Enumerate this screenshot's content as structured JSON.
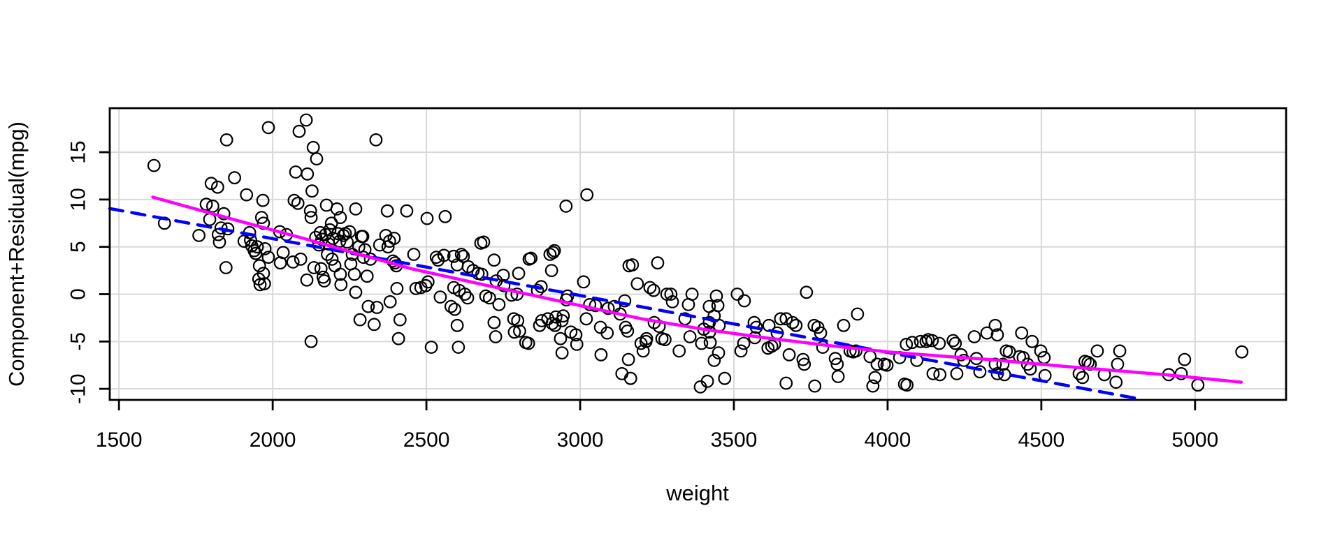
{
  "chart_data": {
    "type": "scatter",
    "title": "",
    "xlabel": "weight",
    "ylabel": "Component+Residual(mpg)",
    "xlim": [
      1470,
      5296
    ],
    "ylim": [
      -11.17,
      19.65
    ],
    "x_ticks": [
      1500,
      2000,
      2500,
      3000,
      3500,
      4000,
      4500,
      5000
    ],
    "y_ticks": [
      -10,
      -5,
      0,
      5,
      10,
      15
    ],
    "grid": true,
    "marker": "open-circle",
    "colors": {
      "points": "#000000",
      "linear_fit": "#0000ff",
      "smooth_fit": "#ff00ff",
      "grid": "#d8d8d8",
      "axis": "#000000",
      "background": "#ffffff"
    },
    "points": [
      [
        1614,
        13.6
      ],
      [
        1648,
        7.5
      ],
      [
        1760,
        6.2
      ],
      [
        1784,
        9.5
      ],
      [
        1795,
        7.9
      ],
      [
        1800,
        11.7
      ],
      [
        1805,
        9.3
      ],
      [
        1821,
        11.3
      ],
      [
        1823,
        6.3
      ],
      [
        1827,
        5.5
      ],
      [
        1832,
        7.0
      ],
      [
        1841,
        8.5
      ],
      [
        1848,
        2.8
      ],
      [
        1850,
        16.3
      ],
      [
        1854,
        6.9
      ],
      [
        1876,
        12.3
      ],
      [
        1907,
        5.6
      ],
      [
        1915,
        10.5
      ],
      [
        1925,
        6.5
      ],
      [
        1928,
        5.7
      ],
      [
        1932,
        5.1
      ],
      [
        1940,
        4.6
      ],
      [
        1945,
        4.3
      ],
      [
        1950,
        5.0
      ],
      [
        1955,
        1.6
      ],
      [
        1957,
        3.0
      ],
      [
        1959,
        1.0
      ],
      [
        1964,
        8.1
      ],
      [
        1968,
        9.9
      ],
      [
        1970,
        7.5
      ],
      [
        1970,
        2.2
      ],
      [
        1973,
        1.1
      ],
      [
        1975,
        4.8
      ],
      [
        1986,
        17.6
      ],
      [
        1986,
        3.9
      ],
      [
        2023,
        6.6
      ],
      [
        2025,
        3.3
      ],
      [
        2034,
        4.4
      ],
      [
        2045,
        6.3
      ],
      [
        2066,
        3.4
      ],
      [
        2070,
        9.9
      ],
      [
        2075,
        12.9
      ],
      [
        2082,
        9.6
      ],
      [
        2086,
        17.2
      ],
      [
        2091,
        3.7
      ],
      [
        2109,
        18.4
      ],
      [
        2111,
        1.5
      ],
      [
        2113,
        12.7
      ],
      [
        2123,
        8.8
      ],
      [
        2125,
        8.1
      ],
      [
        2125,
        -5.0
      ],
      [
        2128,
        10.9
      ],
      [
        2132,
        15.5
      ],
      [
        2134,
        2.8
      ],
      [
        2140,
        6.0
      ],
      [
        2143,
        14.3
      ],
      [
        2150,
        5.2
      ],
      [
        2155,
        6.5
      ],
      [
        2157,
        2.7
      ],
      [
        2160,
        5.8
      ],
      [
        2164,
        1.8
      ],
      [
        2168,
        1.4
      ],
      [
        2172,
        6.3
      ],
      [
        2175,
        9.4
      ],
      [
        2178,
        4.2
      ],
      [
        2182,
        5.3
      ],
      [
        2186,
        6.8
      ],
      [
        2191,
        7.5
      ],
      [
        2193,
        3.7
      ],
      [
        2196,
        5.9
      ],
      [
        2202,
        3.0
      ],
      [
        2209,
        9.0
      ],
      [
        2212,
        6.4
      ],
      [
        2218,
        5.6
      ],
      [
        2220,
        8.1
      ],
      [
        2220,
        2.1
      ],
      [
        2222,
        1.0
      ],
      [
        2230,
        6.2
      ],
      [
        2236,
        6.4
      ],
      [
        2242,
        5.5
      ],
      [
        2250,
        6.6
      ],
      [
        2254,
        3.2
      ],
      [
        2259,
        4.2
      ],
      [
        2266,
        2.1
      ],
      [
        2270,
        9.0
      ],
      [
        2270,
        0.2
      ],
      [
        2280,
        5.0
      ],
      [
        2284,
        -2.7
      ],
      [
        2289,
        6.1
      ],
      [
        2293,
        6.1
      ],
      [
        2295,
        3.9
      ],
      [
        2300,
        4.7
      ],
      [
        2307,
        1.9
      ],
      [
        2311,
        -1.3
      ],
      [
        2318,
        3.7
      ],
      [
        2330,
        -3.2
      ],
      [
        2336,
        16.3
      ],
      [
        2339,
        -1.4
      ],
      [
        2348,
        5.2
      ],
      [
        2368,
        6.2
      ],
      [
        2373,
        8.8
      ],
      [
        2375,
        5.0
      ],
      [
        2380,
        5.6
      ],
      [
        2382,
        -0.8
      ],
      [
        2391,
        3.5
      ],
      [
        2395,
        5.9
      ],
      [
        2398,
        3.3
      ],
      [
        2402,
        3.0
      ],
      [
        2404,
        0.6
      ],
      [
        2409,
        -4.7
      ],
      [
        2414,
        -2.7
      ],
      [
        2436,
        8.8
      ],
      [
        2459,
        4.2
      ],
      [
        2466,
        0.6
      ],
      [
        2482,
        0.7
      ],
      [
        2498,
        0.9
      ],
      [
        2502,
        8.0
      ],
      [
        2505,
        1.3
      ],
      [
        2516,
        -5.6
      ],
      [
        2532,
        3.9
      ],
      [
        2538,
        3.6
      ],
      [
        2545,
        -0.3
      ],
      [
        2557,
        4.1
      ],
      [
        2561,
        8.2
      ],
      [
        2580,
        -1.3
      ],
      [
        2589,
        4.0
      ],
      [
        2589,
        0.7
      ],
      [
        2592,
        -1.6
      ],
      [
        2600,
        3.1
      ],
      [
        2600,
        -3.3
      ],
      [
        2604,
        -5.6
      ],
      [
        2607,
        0.4
      ],
      [
        2614,
        4.2
      ],
      [
        2620,
        4.0
      ],
      [
        2625,
        0.0
      ],
      [
        2634,
        -0.4
      ],
      [
        2636,
        2.9
      ],
      [
        2652,
        2.5
      ],
      [
        2668,
        2.2
      ],
      [
        2677,
        5.4
      ],
      [
        2680,
        2.1
      ],
      [
        2686,
        5.5
      ],
      [
        2693,
        -0.2
      ],
      [
        2705,
        -0.4
      ],
      [
        2720,
        3.6
      ],
      [
        2720,
        -3.0
      ],
      [
        2725,
        -4.5
      ],
      [
        2727,
        1.4
      ],
      [
        2736,
        -1.1
      ],
      [
        2750,
        2.0
      ],
      [
        2752,
        0.9
      ],
      [
        2777,
        -0.1
      ],
      [
        2784,
        -2.6
      ],
      [
        2786,
        -4.0
      ],
      [
        2795,
        0.0
      ],
      [
        2797,
        -2.8
      ],
      [
        2800,
        2.2
      ],
      [
        2803,
        -3.9
      ],
      [
        2823,
        -5.1
      ],
      [
        2832,
        -5.2
      ],
      [
        2834,
        3.7
      ],
      [
        2840,
        3.8
      ],
      [
        2861,
        0.4
      ],
      [
        2868,
        -3.3
      ],
      [
        2873,
        0.8
      ],
      [
        2875,
        -2.8
      ],
      [
        2895,
        -2.6
      ],
      [
        2902,
        4.2
      ],
      [
        2907,
        2.5
      ],
      [
        2909,
        -3.1
      ],
      [
        2912,
        4.4
      ],
      [
        2916,
        4.6
      ],
      [
        2918,
        -3.3
      ],
      [
        2921,
        -2.4
      ],
      [
        2936,
        -4.7
      ],
      [
        2941,
        -2.8
      ],
      [
        2941,
        -6.2
      ],
      [
        2945,
        -2.3
      ],
      [
        2954,
        9.3
      ],
      [
        2955,
        -0.6
      ],
      [
        2959,
        -0.2
      ],
      [
        2970,
        -4.0
      ],
      [
        2986,
        -4.3
      ],
      [
        2989,
        -5.3
      ],
      [
        3011,
        1.3
      ],
      [
        3020,
        -2.6
      ],
      [
        3022,
        10.5
      ],
      [
        3031,
        -1.1
      ],
      [
        3050,
        -1.2
      ],
      [
        3066,
        -3.5
      ],
      [
        3068,
        -6.4
      ],
      [
        3088,
        -4.1
      ],
      [
        3091,
        -1.5
      ],
      [
        3111,
        -1.3
      ],
      [
        3130,
        -2.1
      ],
      [
        3136,
        -8.4
      ],
      [
        3145,
        -0.7
      ],
      [
        3148,
        -3.5
      ],
      [
        3154,
        -3.9
      ],
      [
        3157,
        -6.9
      ],
      [
        3159,
        3.0
      ],
      [
        3164,
        -8.9
      ],
      [
        3170,
        3.1
      ],
      [
        3186,
        1.1
      ],
      [
        3198,
        -5.2
      ],
      [
        3205,
        -6.0
      ],
      [
        3214,
        -5.0
      ],
      [
        3216,
        -4.7
      ],
      [
        3227,
        0.7
      ],
      [
        3239,
        0.4
      ],
      [
        3241,
        -3.0
      ],
      [
        3252,
        3.3
      ],
      [
        3257,
        -3.4
      ],
      [
        3266,
        -4.7
      ],
      [
        3276,
        -4.8
      ],
      [
        3282,
        0.0
      ],
      [
        3295,
        0.0
      ],
      [
        3300,
        -0.8
      ],
      [
        3322,
        -6.0
      ],
      [
        3341,
        -2.6
      ],
      [
        3352,
        -1.1
      ],
      [
        3357,
        -4.5
      ],
      [
        3364,
        0.0
      ],
      [
        3391,
        -9.8
      ],
      [
        3395,
        -5.2
      ],
      [
        3402,
        -3.7
      ],
      [
        3414,
        -9.2
      ],
      [
        3420,
        -1.3
      ],
      [
        3420,
        -3.0
      ],
      [
        3421,
        -4.0
      ],
      [
        3423,
        -5.1
      ],
      [
        3436,
        -2.3
      ],
      [
        3436,
        -7.0
      ],
      [
        3443,
        -0.2
      ],
      [
        3448,
        -1.2
      ],
      [
        3450,
        -6.2
      ],
      [
        3452,
        -3.3
      ],
      [
        3470,
        -8.9
      ],
      [
        3511,
        0.0
      ],
      [
        3523,
        -6.0
      ],
      [
        3532,
        -5.2
      ],
      [
        3534,
        -0.7
      ],
      [
        3566,
        -3.0
      ],
      [
        3568,
        -4.6
      ],
      [
        3573,
        -3.5
      ],
      [
        3611,
        -5.7
      ],
      [
        3614,
        -3.3
      ],
      [
        3623,
        -5.5
      ],
      [
        3632,
        -5.3
      ],
      [
        3641,
        -4.1
      ],
      [
        3652,
        -2.6
      ],
      [
        3670,
        -2.6
      ],
      [
        3670,
        -9.4
      ],
      [
        3680,
        -6.4
      ],
      [
        3691,
        -3.0
      ],
      [
        3702,
        -3.3
      ],
      [
        3725,
        -6.9
      ],
      [
        3729,
        -7.4
      ],
      [
        3736,
        0.2
      ],
      [
        3761,
        -3.3
      ],
      [
        3763,
        -9.7
      ],
      [
        3773,
        -3.5
      ],
      [
        3782,
        -4.1
      ],
      [
        3789,
        -5.6
      ],
      [
        3830,
        -6.8
      ],
      [
        3836,
        -7.4
      ],
      [
        3839,
        -8.7
      ],
      [
        3857,
        -3.3
      ],
      [
        3878,
        -6.0
      ],
      [
        3888,
        -6.1
      ],
      [
        3897,
        -6.0
      ],
      [
        3902,
        -2.1
      ],
      [
        3943,
        -6.6
      ],
      [
        3952,
        -9.7
      ],
      [
        3959,
        -8.8
      ],
      [
        3966,
        -7.4
      ],
      [
        3989,
        -7.4
      ],
      [
        3998,
        -7.5
      ],
      [
        4039,
        -6.7
      ],
      [
        4055,
        -9.5
      ],
      [
        4063,
        -9.6
      ],
      [
        4061,
        -5.3
      ],
      [
        4080,
        -5.1
      ],
      [
        4095,
        -7.0
      ],
      [
        4107,
        -5.0
      ],
      [
        4125,
        -5.0
      ],
      [
        4132,
        -4.8
      ],
      [
        4145,
        -4.9
      ],
      [
        4148,
        -8.4
      ],
      [
        4168,
        -5.2
      ],
      [
        4170,
        -8.5
      ],
      [
        4213,
        -4.9
      ],
      [
        4220,
        -5.2
      ],
      [
        4225,
        -8.4
      ],
      [
        4239,
        -6.4
      ],
      [
        4248,
        -7.0
      ],
      [
        4282,
        -4.5
      ],
      [
        4289,
        -6.8
      ],
      [
        4300,
        -8.2
      ],
      [
        4323,
        -4.1
      ],
      [
        4350,
        -3.3
      ],
      [
        4350,
        -7.4
      ],
      [
        4357,
        -4.3
      ],
      [
        4357,
        -8.4
      ],
      [
        4375,
        -7.4
      ],
      [
        4380,
        -8.5
      ],
      [
        4386,
        -6.0
      ],
      [
        4396,
        -6.1
      ],
      [
        4429,
        -6.6
      ],
      [
        4436,
        -4.1
      ],
      [
        4441,
        -6.7
      ],
      [
        4455,
        -7.4
      ],
      [
        4464,
        -7.9
      ],
      [
        4470,
        -5.0
      ],
      [
        4498,
        -6.0
      ],
      [
        4509,
        -6.7
      ],
      [
        4512,
        -8.6
      ],
      [
        4623,
        -8.4
      ],
      [
        4634,
        -8.8
      ],
      [
        4642,
        -7.1
      ],
      [
        4652,
        -7.2
      ],
      [
        4659,
        -7.4
      ],
      [
        4682,
        -6.0
      ],
      [
        4705,
        -8.5
      ],
      [
        4743,
        -9.3
      ],
      [
        4748,
        -7.4
      ],
      [
        4755,
        -6.0
      ],
      [
        4914,
        -8.5
      ],
      [
        4955,
        -8.4
      ],
      [
        4966,
        -6.9
      ],
      [
        5009,
        -9.6
      ],
      [
        5152,
        -6.1
      ]
    ],
    "lines": [
      {
        "name": "linear-fit",
        "style": "dashed",
        "color": "#0000ff",
        "points": [
          [
            1470,
            9.05
          ],
          [
            4817,
            -11.05
          ]
        ]
      },
      {
        "name": "smooth-fit",
        "style": "solid",
        "color": "#ff00ff",
        "points": [
          [
            1610,
            10.25
          ],
          [
            1900,
            7.65
          ],
          [
            2100,
            5.9
          ],
          [
            2266,
            4.35
          ],
          [
            2450,
            2.7
          ],
          [
            2700,
            0.9
          ],
          [
            3000,
            -1.2
          ],
          [
            3200,
            -2.6
          ],
          [
            3400,
            -3.7
          ],
          [
            3600,
            -4.6
          ],
          [
            3800,
            -5.4
          ],
          [
            4000,
            -6.1
          ],
          [
            4200,
            -6.6
          ],
          [
            4330,
            -6.9
          ],
          [
            4600,
            -7.7
          ],
          [
            4900,
            -8.5
          ],
          [
            5150,
            -9.3
          ]
        ]
      }
    ],
    "legend": null
  }
}
